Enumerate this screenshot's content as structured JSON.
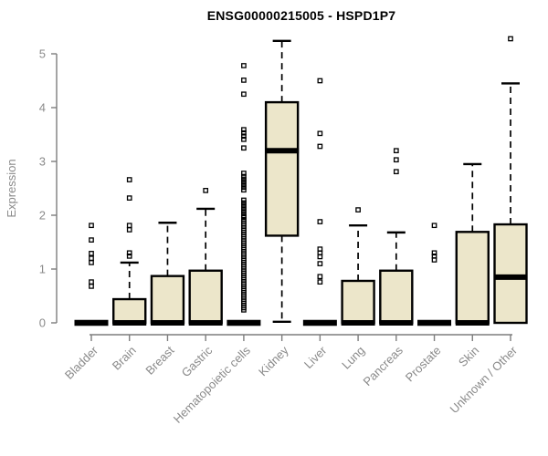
{
  "title": "ENSG00000215005 - HSPD1P7",
  "chart_data": {
    "type": "boxplot",
    "title": "ENSG00000215005 - HSPD1P7",
    "xlabel": "",
    "ylabel": "Expression",
    "ylim": [
      0,
      5.3
    ],
    "yticks": [
      0,
      1,
      2,
      3,
      4,
      5
    ],
    "grid": false,
    "legend": "none",
    "categories": [
      "Bladder",
      "Brain",
      "Breast",
      "Gastric",
      "Hematopoietic cells",
      "Kidney",
      "Liver",
      "Lung",
      "Pancreas",
      "Prostate",
      "Skin",
      "Unknown / Other"
    ],
    "series": [
      {
        "label": "Bladder",
        "whisker_low": 0,
        "q1": 0,
        "median": 0,
        "q3": 0,
        "whisker_high": 0,
        "outliers": [
          0.68,
          0.76,
          1.12,
          1.2,
          1.29,
          1.54,
          1.81
        ]
      },
      {
        "label": "Brain",
        "whisker_low": 0,
        "q1": 0,
        "median": 0,
        "q3": 0.44,
        "whisker_high": 1.12,
        "outliers": [
          1.24,
          1.3,
          1.73,
          1.81,
          2.32,
          2.66
        ]
      },
      {
        "label": "Breast",
        "whisker_low": 0,
        "q1": 0,
        "median": 0,
        "q3": 0.87,
        "whisker_high": 1.86,
        "outliers": []
      },
      {
        "label": "Gastric",
        "whisker_low": 0,
        "q1": 0,
        "median": 0,
        "q3": 0.97,
        "whisker_high": 2.12,
        "outliers": [
          2.46
        ]
      },
      {
        "label": "Hematopoietic cells",
        "whisker_low": 0,
        "q1": 0,
        "median": 0,
        "q3": 0,
        "whisker_high": 0,
        "outliers": [
          0.24,
          0.28,
          0.32,
          0.36,
          0.4,
          0.44,
          0.48,
          0.52,
          0.56,
          0.6,
          0.64,
          0.68,
          0.72,
          0.76,
          0.8,
          0.84,
          0.88,
          0.92,
          0.96,
          1.0,
          1.04,
          1.08,
          1.12,
          1.16,
          1.2,
          1.24,
          1.28,
          1.32,
          1.36,
          1.4,
          1.44,
          1.48,
          1.52,
          1.56,
          1.6,
          1.64,
          1.68,
          1.72,
          1.76,
          1.8,
          1.84,
          1.88,
          1.92,
          1.96,
          1.98,
          2.03,
          2.08,
          2.13,
          2.18,
          2.23,
          2.28,
          2.47,
          2.52,
          2.57,
          2.62,
          2.67,
          2.72,
          2.78,
          3.25,
          3.41,
          3.47,
          3.53,
          3.59,
          4.25,
          4.51,
          4.78
        ]
      },
      {
        "label": "Kidney",
        "whisker_low": 0.02,
        "q1": 1.62,
        "median": 3.2,
        "q3": 4.1,
        "whisker_high": 5.24,
        "outliers": []
      },
      {
        "label": "Liver",
        "whisker_low": 0,
        "q1": 0,
        "median": 0,
        "q3": 0,
        "whisker_high": 0,
        "outliers": [
          0.76,
          0.86,
          1.1,
          1.23,
          1.3,
          1.37,
          1.88,
          3.28,
          3.52,
          4.5
        ]
      },
      {
        "label": "Lung",
        "whisker_low": 0,
        "q1": 0,
        "median": 0,
        "q3": 0.78,
        "whisker_high": 1.81,
        "outliers": [
          2.1
        ]
      },
      {
        "label": "Pancreas",
        "whisker_low": 0,
        "q1": 0,
        "median": 0,
        "q3": 0.97,
        "whisker_high": 1.68,
        "outliers": [
          2.81,
          3.03,
          3.2
        ]
      },
      {
        "label": "Prostate",
        "whisker_low": 0,
        "q1": 0,
        "median": 0,
        "q3": 0,
        "whisker_high": 0,
        "outliers": [
          1.17,
          1.24,
          1.3,
          1.81
        ]
      },
      {
        "label": "Skin",
        "whisker_low": 0,
        "q1": 0,
        "median": 0,
        "q3": 1.69,
        "whisker_high": 2.95,
        "outliers": []
      },
      {
        "label": "Unknown / Other",
        "whisker_low": 0,
        "q1": 0,
        "median": 0.85,
        "q3": 1.83,
        "whisker_high": 4.45,
        "outliers": [
          5.28
        ]
      }
    ],
    "colors": {
      "box_fill": "#ECE6CA",
      "box_stroke": "#000000",
      "median": "#000000",
      "whisker": "#000000",
      "outlier": "#000000",
      "axis_line": "#7d7d7d",
      "tick_label": "#8a8a8a",
      "title": "#000000",
      "background": "#ffffff"
    }
  }
}
